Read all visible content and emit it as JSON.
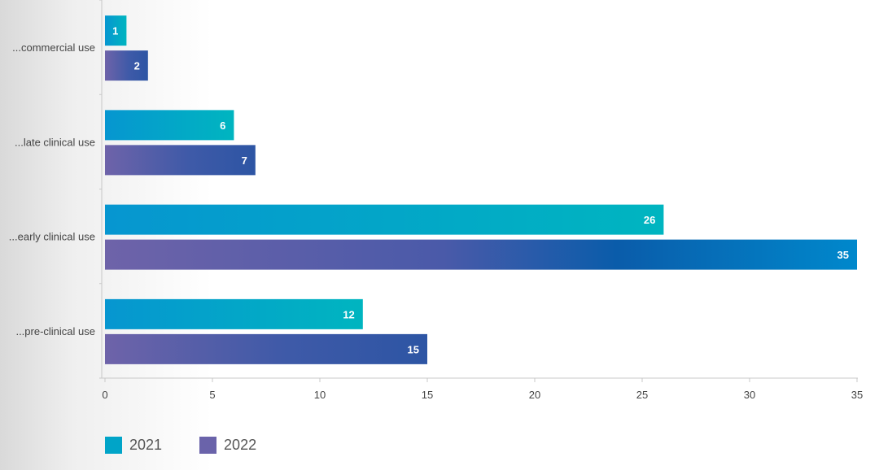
{
  "chart_data": {
    "type": "bar",
    "orientation": "horizontal",
    "categories": [
      "...commercial use",
      "...late clinical use",
      "...early clinical use",
      "...pre-clinical use"
    ],
    "series": [
      {
        "name": "2021",
        "values": [
          1,
          6,
          26,
          12
        ],
        "color": "#00a4c8"
      },
      {
        "name": "2022",
        "values": [
          2,
          7,
          35,
          15
        ],
        "color": "#6a63aa"
      }
    ],
    "xlim": [
      0,
      35
    ],
    "xticks": [
      0,
      5,
      10,
      15,
      20,
      25,
      30,
      35
    ],
    "grid": false,
    "legend_position": "bottom-left"
  },
  "legend": [
    {
      "label": "2021",
      "color": "#00a4c8"
    },
    {
      "label": "2022",
      "color": "#6a63aa"
    }
  ]
}
